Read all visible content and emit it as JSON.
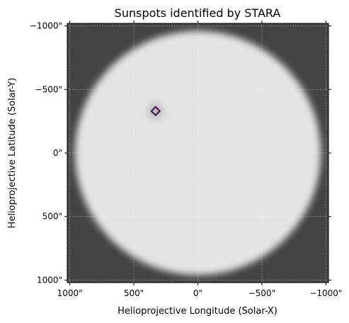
{
  "chart_data": {
    "type": "image",
    "title": "Sunspots identified by STARA",
    "xlabel": "Helioprojective Longitude (Solar-X)",
    "ylabel": "Helioprojective Latitude (Solar-Y)",
    "xlim": [
      1020,
      -1020
    ],
    "ylim": [
      -1020,
      1020
    ],
    "x_ticks": [
      1000,
      500,
      0,
      -500,
      -1000
    ],
    "x_tick_labels": [
      "1000\"",
      "500\"",
      "0\"",
      "−500\"",
      "−1000\""
    ],
    "y_ticks": [
      -1000,
      -500,
      0,
      500,
      1000
    ],
    "y_tick_labels": [
      "−1000\"",
      "−500\"",
      "0\"",
      "500\"",
      "1000\""
    ],
    "grid": true,
    "background_color": "#434343",
    "disk_color": "#e4e4e4",
    "disk_radius_arcsec": 960,
    "contour_color": "#3d0a4f",
    "sunspots": [
      {
        "x": 330,
        "y": -330
      }
    ]
  }
}
